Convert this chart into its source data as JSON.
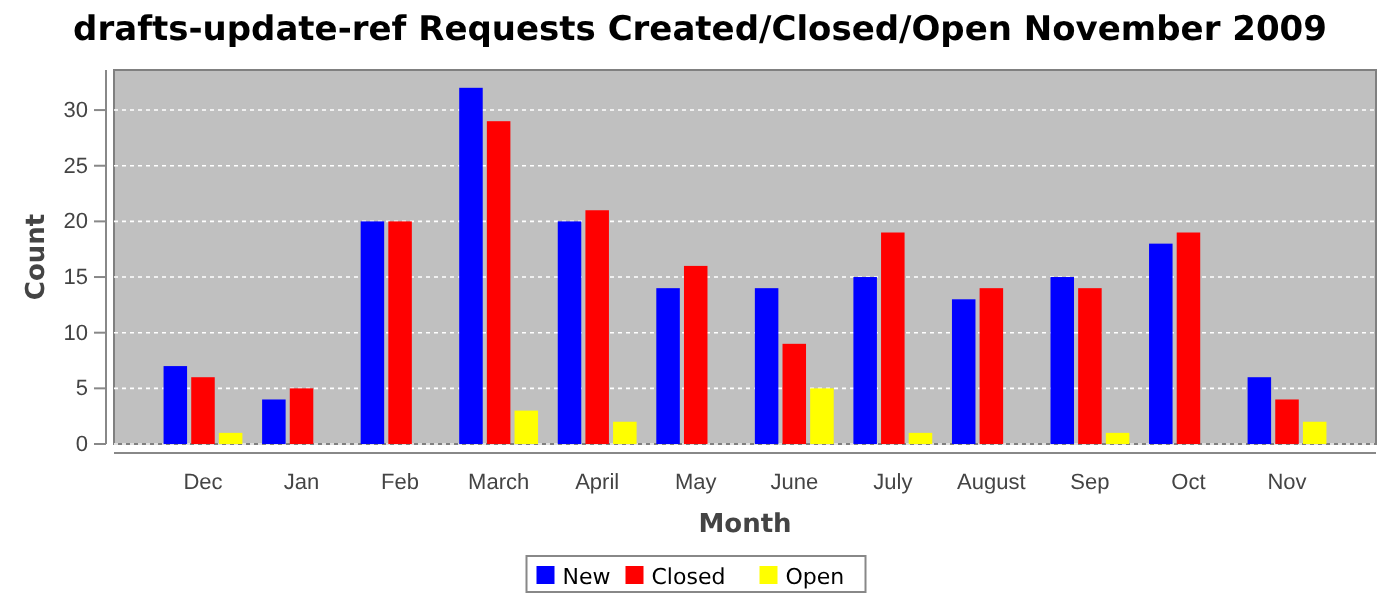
{
  "chart_data": {
    "type": "bar",
    "title": "drafts-update-ref Requests Created/Closed/Open November 2009",
    "xlabel": "Month",
    "ylabel": "Count",
    "categories": [
      "Dec",
      "Jan",
      "Feb",
      "March",
      "April",
      "May",
      "June",
      "July",
      "August",
      "Sep",
      "Oct",
      "Nov"
    ],
    "series": [
      {
        "name": "New",
        "color": "#0000ff",
        "values": [
          7,
          4,
          20,
          32,
          20,
          14,
          14,
          15,
          13,
          15,
          18,
          6
        ]
      },
      {
        "name": "Closed",
        "color": "#ff0000",
        "values": [
          6,
          5,
          20,
          29,
          21,
          16,
          9,
          19,
          14,
          14,
          19,
          4
        ]
      },
      {
        "name": "Open",
        "color": "#ffff00",
        "values": [
          1,
          0,
          0,
          3,
          2,
          0,
          5,
          1,
          0,
          1,
          0,
          2
        ]
      }
    ],
    "ylim": [
      0,
      33.6
    ],
    "yticks": [
      0,
      5,
      10,
      15,
      20,
      25,
      30
    ],
    "grid": "y",
    "legend": "bottom"
  }
}
